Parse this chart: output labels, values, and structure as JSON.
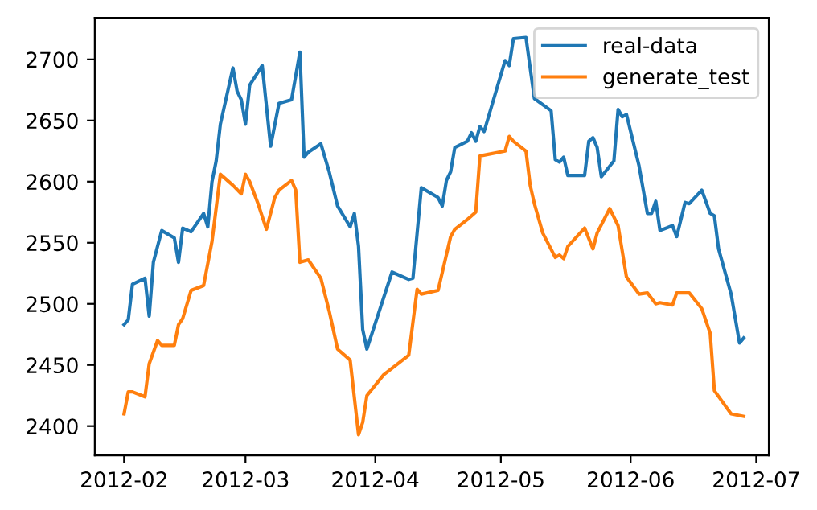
{
  "chart_data": {
    "type": "line",
    "xlim": [
      "2012-01-25",
      "2012-07-04"
    ],
    "xticks": [
      "2012-02",
      "2012-03",
      "2012-04",
      "2012-05",
      "2012-06",
      "2012-07"
    ],
    "ylim": [
      2376,
      2734
    ],
    "yticks": [
      2400,
      2450,
      2500,
      2550,
      2600,
      2650,
      2700
    ],
    "grid": false,
    "legend": "top right",
    "series": [
      {
        "name": "real-data",
        "color": "#1f77b4",
        "x": [
          "2012-02-01",
          "2012-02-02",
          "2012-02-03",
          "2012-02-06",
          "2012-02-07",
          "2012-02-08",
          "2012-02-10",
          "2012-02-13",
          "2012-02-14",
          "2012-02-15",
          "2012-02-17",
          "2012-02-20",
          "2012-02-21",
          "2012-02-22",
          "2012-02-23",
          "2012-02-24",
          "2012-02-27",
          "2012-02-28",
          "2012-02-29",
          "2012-03-01",
          "2012-03-02",
          "2012-03-05",
          "2012-03-07",
          "2012-03-09",
          "2012-03-12",
          "2012-03-14",
          "2012-03-15",
          "2012-03-16",
          "2012-03-19",
          "2012-03-21",
          "2012-03-23",
          "2012-03-26",
          "2012-03-27",
          "2012-03-28",
          "2012-03-29",
          "2012-03-30",
          "2012-04-05",
          "2012-04-09",
          "2012-04-10",
          "2012-04-12",
          "2012-04-16",
          "2012-04-17",
          "2012-04-18",
          "2012-04-19",
          "2012-04-20",
          "2012-04-23",
          "2012-04-24",
          "2012-04-25",
          "2012-04-26",
          "2012-04-27",
          "2012-05-02",
          "2012-05-03",
          "2012-05-04",
          "2012-05-07",
          "2012-05-09",
          "2012-05-13",
          "2012-05-14",
          "2012-05-15",
          "2012-05-16",
          "2012-05-17",
          "2012-05-21",
          "2012-05-22",
          "2012-05-23",
          "2012-05-24",
          "2012-05-25",
          "2012-05-28",
          "2012-05-29",
          "2012-05-30",
          "2012-05-31",
          "2012-06-03",
          "2012-06-05",
          "2012-06-06",
          "2012-06-07",
          "2012-06-08",
          "2012-06-11",
          "2012-06-12",
          "2012-06-14",
          "2012-06-15",
          "2012-06-18",
          "2012-06-20",
          "2012-06-21",
          "2012-06-22",
          "2012-06-25",
          "2012-06-27",
          "2012-06-28"
        ],
        "values": [
          2483,
          2487,
          2516,
          2521,
          2490,
          2534,
          2560,
          2554,
          2534,
          2562,
          2559,
          2574,
          2563,
          2600,
          2617,
          2647,
          2693,
          2674,
          2667,
          2647,
          2679,
          2695,
          2629,
          2664,
          2667,
          2706,
          2620,
          2624,
          2631,
          2608,
          2580,
          2563,
          2574,
          2547,
          2479,
          2463,
          2526,
          2520,
          2521,
          2595,
          2587,
          2580,
          2601,
          2608,
          2628,
          2633,
          2640,
          2633,
          2645,
          2641,
          2699,
          2695,
          2717,
          2718,
          2668,
          2658,
          2618,
          2616,
          2620,
          2605,
          2605,
          2633,
          2636,
          2628,
          2604,
          2617,
          2659,
          2653,
          2655,
          2613,
          2574,
          2574,
          2584,
          2560,
          2564,
          2555,
          2583,
          2582,
          2593,
          2574,
          2572,
          2545,
          2508,
          2468,
          2472
        ]
      },
      {
        "name": "generate_test",
        "color": "#ff7f0e",
        "x": [
          "2012-02-01",
          "2012-02-02",
          "2012-02-03",
          "2012-02-06",
          "2012-02-07",
          "2012-02-09",
          "2012-02-10",
          "2012-02-13",
          "2012-02-14",
          "2012-02-15",
          "2012-02-17",
          "2012-02-20",
          "2012-02-22",
          "2012-02-24",
          "2012-02-27",
          "2012-02-29",
          "2012-03-01",
          "2012-03-02",
          "2012-03-04",
          "2012-03-06",
          "2012-03-08",
          "2012-03-09",
          "2012-03-12",
          "2012-03-13",
          "2012-03-14",
          "2012-03-16",
          "2012-03-19",
          "2012-03-21",
          "2012-03-23",
          "2012-03-26",
          "2012-03-28",
          "2012-03-29",
          "2012-03-30",
          "2012-04-03",
          "2012-04-09",
          "2012-04-11",
          "2012-04-12",
          "2012-04-16",
          "2012-04-19",
          "2012-04-20",
          "2012-04-23",
          "2012-04-25",
          "2012-04-26",
          "2012-05-02",
          "2012-05-03",
          "2012-05-04",
          "2012-05-07",
          "2012-05-08",
          "2012-05-09",
          "2012-05-11",
          "2012-05-14",
          "2012-05-15",
          "2012-05-16",
          "2012-05-17",
          "2012-05-21",
          "2012-05-23",
          "2012-05-24",
          "2012-05-27",
          "2012-05-29",
          "2012-05-31",
          "2012-06-03",
          "2012-06-05",
          "2012-06-07",
          "2012-06-08",
          "2012-06-11",
          "2012-06-12",
          "2012-06-15",
          "2012-06-18",
          "2012-06-20",
          "2012-06-21",
          "2012-06-25",
          "2012-06-28"
        ],
        "values": [
          2410,
          2428,
          2428,
          2424,
          2451,
          2470,
          2466,
          2466,
          2483,
          2488,
          2511,
          2515,
          2551,
          2606,
          2597,
          2590,
          2606,
          2600,
          2582,
          2561,
          2587,
          2593,
          2601,
          2593,
          2534,
          2536,
          2521,
          2494,
          2463,
          2454,
          2393,
          2403,
          2425,
          2442,
          2458,
          2512,
          2508,
          2511,
          2555,
          2561,
          2569,
          2575,
          2621,
          2625,
          2637,
          2633,
          2625,
          2597,
          2582,
          2558,
          2538,
          2540,
          2537,
          2547,
          2562,
          2545,
          2558,
          2578,
          2564,
          2522,
          2508,
          2509,
          2500,
          2501,
          2499,
          2509,
          2509,
          2496,
          2476,
          2429,
          2410,
          2408
        ]
      }
    ]
  }
}
